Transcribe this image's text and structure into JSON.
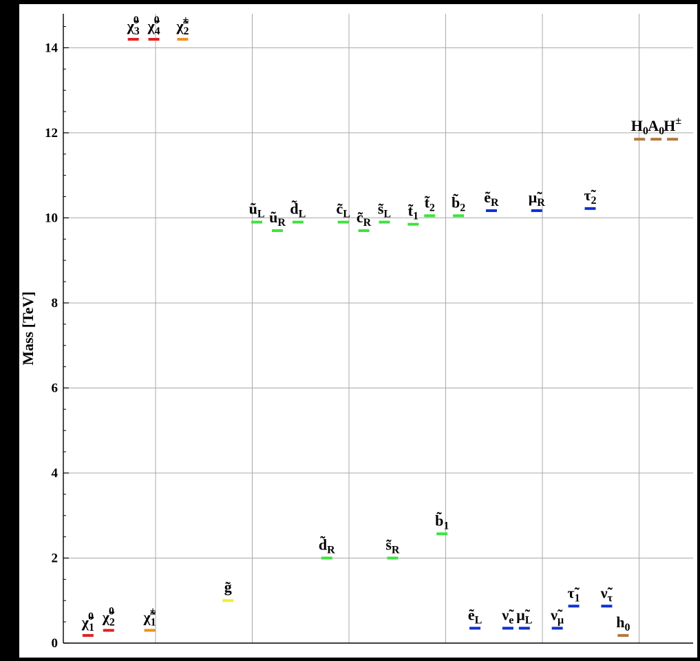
{
  "chart_data": {
    "type": "scatter",
    "title": "",
    "xlabel": "",
    "ylabel": "Mass [TeV]",
    "ylim": [
      0,
      14.8
    ],
    "yticks": [
      "0",
      "2",
      "4",
      "6",
      "8",
      "10",
      "12",
      "14"
    ],
    "grid": true,
    "colors": {
      "neutralino": "#e02020",
      "chargino": "#f0901e",
      "gluino": "#f2ee2c",
      "squark": "#3ee23e",
      "slepton": "#1030d0",
      "higgs": "#b07840"
    },
    "particles": [
      {
        "base": "χ̃",
        "sub": "1",
        "sup": "0",
        "mass": 0.18,
        "x": 0.3,
        "group": "neutralino"
      },
      {
        "base": "χ̃",
        "sub": "2",
        "sup": "0",
        "mass": 0.3,
        "x": 0.55,
        "group": "neutralino"
      },
      {
        "base": "χ̃",
        "sub": "3",
        "sup": "0",
        "mass": 14.2,
        "x": 0.85,
        "group": "neutralino"
      },
      {
        "base": "χ̃",
        "sub": "4",
        "sup": "0",
        "mass": 14.2,
        "x": 1.1,
        "group": "neutralino"
      },
      {
        "base": "χ̃",
        "sub": "1",
        "sup": "±",
        "mass": 0.3,
        "x": 1.05,
        "group": "chargino"
      },
      {
        "base": "χ̃",
        "sub": "2",
        "sup": "±",
        "mass": 14.2,
        "x": 1.45,
        "group": "chargino"
      },
      {
        "base": "g̃",
        "sub": "",
        "sup": "",
        "mass": 1.0,
        "x": 2.0,
        "group": "gluino"
      },
      {
        "base": "ũ",
        "sub": "L",
        "sup": "",
        "mass": 9.9,
        "x": 2.35,
        "group": "squark"
      },
      {
        "base": "ũ",
        "sub": "R",
        "sup": "",
        "mass": 9.7,
        "x": 2.6,
        "group": "squark"
      },
      {
        "base": "d̃",
        "sub": "L",
        "sup": "",
        "mass": 9.9,
        "x": 2.85,
        "group": "squark"
      },
      {
        "base": "d̃",
        "sub": "R",
        "sup": "",
        "mass": 2.0,
        "x": 3.2,
        "group": "squark"
      },
      {
        "base": "c̃",
        "sub": "L",
        "sup": "",
        "mass": 9.9,
        "x": 3.4,
        "group": "squark"
      },
      {
        "base": "c̃",
        "sub": "R",
        "sup": "",
        "mass": 9.7,
        "x": 3.65,
        "group": "squark"
      },
      {
        "base": "s̃",
        "sub": "L",
        "sup": "",
        "mass": 9.9,
        "x": 3.9,
        "group": "squark"
      },
      {
        "base": "s̃",
        "sub": "R",
        "sup": "",
        "mass": 2.0,
        "x": 4.0,
        "group": "squark"
      },
      {
        "base": "t̃",
        "sub": "1",
        "sup": "",
        "mass": 9.85,
        "x": 4.25,
        "group": "squark"
      },
      {
        "base": "t̃",
        "sub": "2",
        "sup": "",
        "mass": 10.05,
        "x": 4.45,
        "group": "squark"
      },
      {
        "base": "b̃",
        "sub": "1",
        "sup": "",
        "mass": 2.57,
        "x": 4.6,
        "group": "squark"
      },
      {
        "base": "b̃",
        "sub": "2",
        "sup": "",
        "mass": 10.05,
        "x": 4.8,
        "group": "squark"
      },
      {
        "base": "ẽ",
        "sub": "L",
        "sup": "",
        "mass": 0.35,
        "x": 5.0,
        "group": "slepton"
      },
      {
        "base": "ẽ",
        "sub": "R",
        "sup": "",
        "mass": 10.17,
        "x": 5.2,
        "group": "slepton"
      },
      {
        "base": "ν̃",
        "sub": "e",
        "sup": "",
        "mass": 0.35,
        "x": 5.4,
        "group": "slepton"
      },
      {
        "base": "μ̃",
        "sub": "L",
        "sup": "",
        "mass": 0.35,
        "x": 5.6,
        "group": "slepton"
      },
      {
        "base": "μ̃",
        "sub": "R",
        "sup": "",
        "mass": 10.17,
        "x": 5.75,
        "group": "slepton"
      },
      {
        "base": "ν̃",
        "sub": "μ",
        "sup": "",
        "mass": 0.35,
        "x": 6.0,
        "group": "slepton"
      },
      {
        "base": "τ̃",
        "sub": "1",
        "sup": "",
        "mass": 0.87,
        "x": 6.2,
        "group": "slepton"
      },
      {
        "base": "τ̃",
        "sub": "2",
        "sup": "",
        "mass": 10.22,
        "x": 6.4,
        "group": "slepton"
      },
      {
        "base": "ν̃",
        "sub": "τ",
        "sup": "",
        "mass": 0.87,
        "x": 6.6,
        "group": "slepton"
      },
      {
        "base": "h",
        "sub": "0",
        "sup": "",
        "mass": 0.18,
        "x": 6.8,
        "group": "higgs"
      },
      {
        "base": "H",
        "sub": "0",
        "sup": "",
        "mass": 11.85,
        "x": 7.0,
        "group": "higgs"
      },
      {
        "base": "A",
        "sub": "0",
        "sup": "",
        "mass": 11.85,
        "x": 7.2,
        "group": "higgs"
      },
      {
        "base": "H",
        "sub": "",
        "sup": "±",
        "mass": 11.85,
        "x": 7.4,
        "group": "higgs"
      }
    ]
  }
}
